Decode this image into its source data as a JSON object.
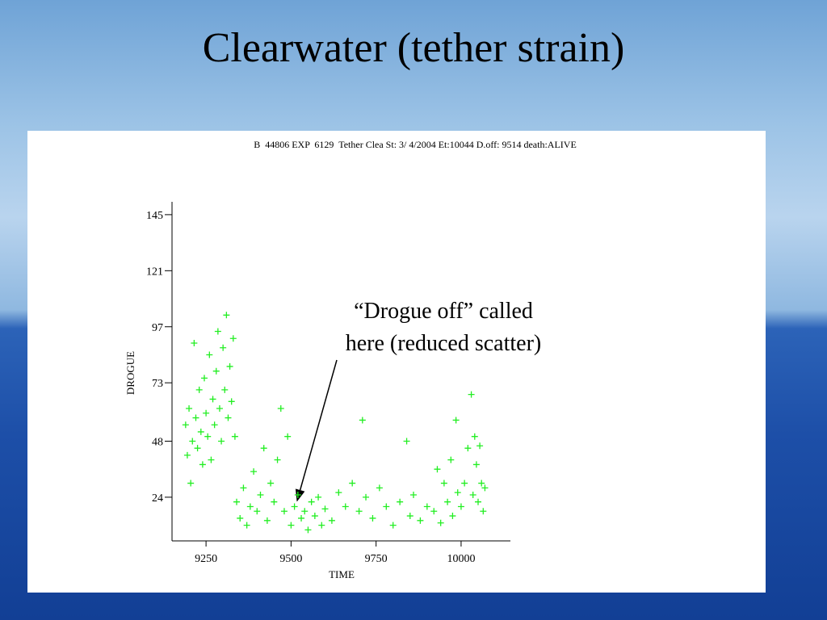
{
  "title": "Clearwater (tether strain)",
  "chart_data": {
    "type": "scatter",
    "subtitle": "B  44806 EXP  6129  Tether Clea St: 3/ 4/2004 Et:10044 D.off: 9514 death:ALIVE",
    "x_label": "TIME",
    "y_label": "DROGUE",
    "annotation": [
      "“Drogue off” called",
      "here (reduced scatter)"
    ],
    "xlim": [
      9150,
      10145
    ],
    "ylim": [
      5.3,
      150.5
    ],
    "xticks": [
      9250,
      9500,
      9750,
      10000
    ],
    "yticks": [
      24,
      48,
      73,
      97,
      121,
      145
    ],
    "grid": false,
    "series": [
      {
        "color": "#22ee22",
        "x": [
          9190,
          9195,
          9200,
          9205,
          9210,
          9215,
          9220,
          9225,
          9230,
          9235,
          9240,
          9245,
          9250,
          9255,
          9260,
          9265,
          9270,
          9275,
          9280,
          9285,
          9290,
          9295,
          9300,
          9305,
          9310,
          9315,
          9320,
          9325,
          9330,
          9335,
          9340,
          9350,
          9360,
          9370,
          9380,
          9390,
          9400,
          9410,
          9420,
          9430,
          9440,
          9450,
          9460,
          9470,
          9480,
          9490,
          9500,
          9510,
          9520,
          9530,
          9540,
          9550,
          9560,
          9570,
          9580,
          9590,
          9600,
          9620,
          9640,
          9660,
          9680,
          9700,
          9710,
          9720,
          9740,
          9760,
          9780,
          9800,
          9820,
          9840,
          9850,
          9860,
          9880,
          9900,
          9920,
          9930,
          9940,
          9950,
          9960,
          9970,
          9975,
          9985,
          9990,
          10000,
          10010,
          10020,
          10030,
          10035,
          10040,
          10045,
          10050,
          10055,
          10060,
          10065,
          10070
        ],
        "values": [
          55,
          42,
          62,
          30,
          48,
          90,
          58,
          45,
          70,
          52,
          38,
          75,
          60,
          50,
          85,
          40,
          66,
          55,
          78,
          95,
          62,
          48,
          88,
          70,
          102,
          58,
          80,
          65,
          92,
          50,
          22,
          15,
          28,
          12,
          20,
          35,
          18,
          25,
          45,
          14,
          30,
          22,
          40,
          62,
          18,
          50,
          12,
          20,
          25,
          15,
          18,
          10,
          22,
          16,
          24,
          12,
          19,
          14,
          26,
          20,
          30,
          18,
          57,
          24,
          15,
          28,
          20,
          12,
          22,
          48,
          16,
          25,
          14,
          20,
          18,
          36,
          13,
          30,
          22,
          40,
          16,
          57,
          26,
          20,
          30,
          45,
          68,
          25,
          50,
          38,
          22,
          46,
          30,
          18,
          28
        ]
      }
    ]
  }
}
